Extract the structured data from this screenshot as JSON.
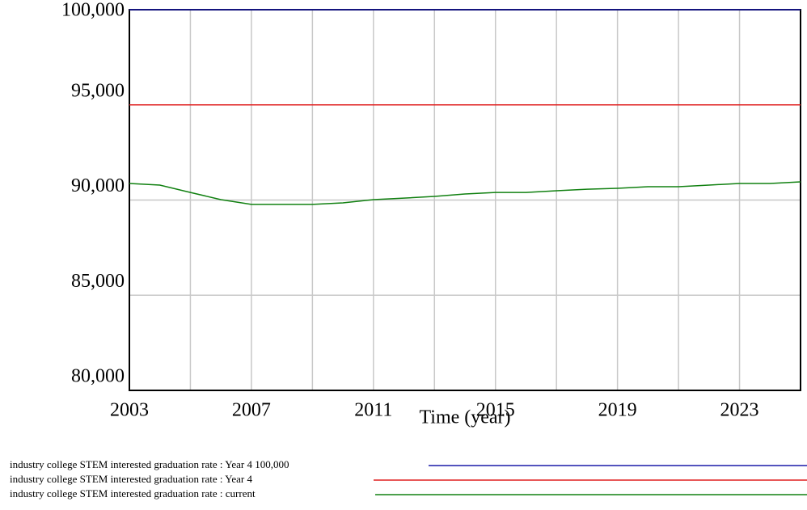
{
  "chart_data": {
    "type": "line",
    "x_label": "Time (year)",
    "x": [
      2003,
      2004,
      2005,
      2006,
      2007,
      2008,
      2009,
      2010,
      2011,
      2012,
      2013,
      2014,
      2015,
      2016,
      2017,
      2018,
      2019,
      2020,
      2021,
      2022,
      2023,
      2024,
      2025
    ],
    "series": [
      {
        "name": "industry college STEM interested graduation rate : Year 4 100,000",
        "color": "#1a1aa8",
        "values": [
          100000,
          100000,
          100000,
          100000,
          100000,
          100000,
          100000,
          100000,
          100000,
          100000,
          100000,
          100000,
          100000,
          100000,
          100000,
          100000,
          100000,
          100000,
          100000,
          100000,
          100000,
          100000,
          100000
        ]
      },
      {
        "name": "industry college STEM interested graduation rate : Year 4",
        "color": "#e02020",
        "values": [
          95000,
          95000,
          95000,
          95000,
          95000,
          95000,
          95000,
          95000,
          95000,
          95000,
          95000,
          95000,
          95000,
          95000,
          95000,
          95000,
          95000,
          95000,
          95000,
          95000,
          95000,
          95000,
          95000
        ]
      },
      {
        "name": "industry college STEM interested graduation rate : current",
        "color": "#108010",
        "values": [
          90870,
          90785,
          90400,
          90020,
          89770,
          89770,
          89770,
          89850,
          90020,
          90100,
          90190,
          90320,
          90400,
          90400,
          90490,
          90570,
          90615,
          90700,
          90700,
          90785,
          90870,
          90870,
          90955
        ]
      }
    ],
    "xlim": [
      2003,
      2025
    ],
    "xticks": [
      2003,
      2007,
      2011,
      2015,
      2019,
      2023
    ],
    "ylim": [
      80000,
      100000
    ],
    "yticks": [
      {
        "value": 80000,
        "label": "80,000"
      },
      {
        "value": 85000,
        "label": "85,000"
      },
      {
        "value": 90000,
        "label": "90,000"
      },
      {
        "value": 95000,
        "label": "95,000"
      },
      {
        "value": 100000,
        "label": "100,000"
      }
    ],
    "grid": true,
    "x_minor_grid": true
  }
}
